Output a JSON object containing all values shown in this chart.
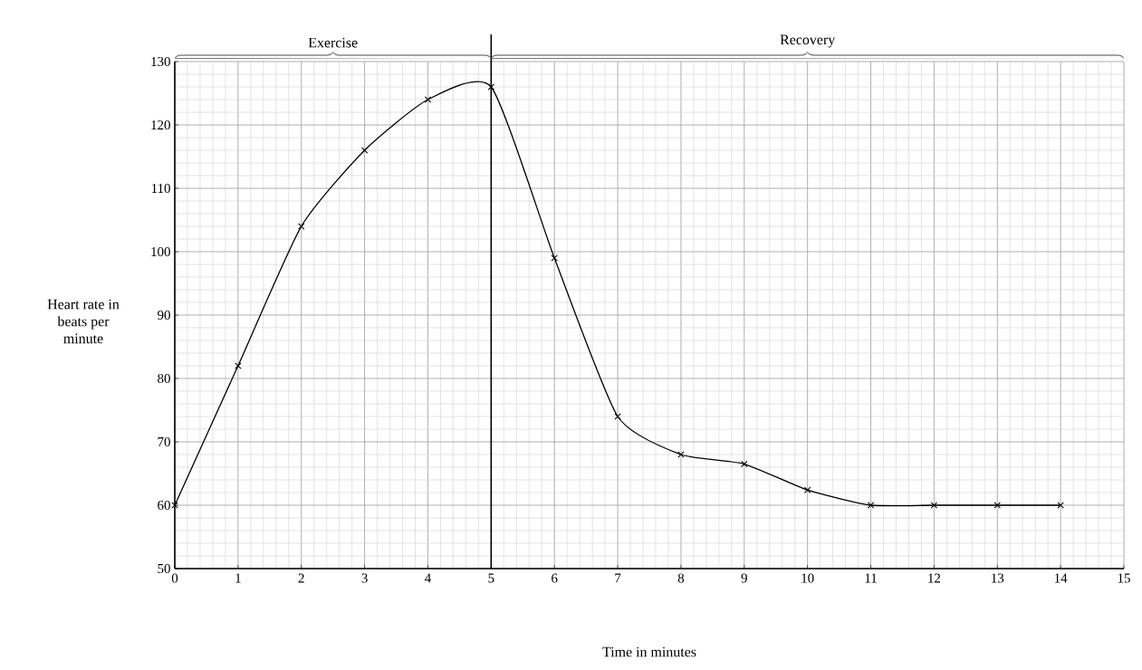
{
  "chart_data": {
    "type": "line",
    "xlabel": "Time in minutes",
    "ylabel": "Heart rate in beats per minute",
    "x": [
      0,
      1,
      2,
      3,
      4,
      5,
      6,
      7,
      8,
      9,
      10,
      11,
      12,
      13,
      14
    ],
    "series": [
      {
        "color": "#000000",
        "values": [
          60,
          82,
          104,
          116,
          124,
          126,
          99,
          74,
          68,
          66.5,
          62.4,
          60,
          60,
          60,
          60
        ]
      }
    ],
    "xlim": [
      0,
      15
    ],
    "ylim": [
      50,
      130
    ],
    "xticks": [
      0,
      1,
      2,
      3,
      4,
      5,
      6,
      7,
      8,
      9,
      10,
      11,
      12,
      13,
      14,
      15
    ],
    "yticks": [
      50,
      60,
      70,
      80,
      90,
      100,
      110,
      120,
      130
    ],
    "grid": true,
    "marker": "cross",
    "line_style": "solid",
    "ref_lines": [
      {
        "axis": "x",
        "value": 5
      }
    ],
    "annotations": [
      "Exercise",
      "Recovery"
    ]
  }
}
